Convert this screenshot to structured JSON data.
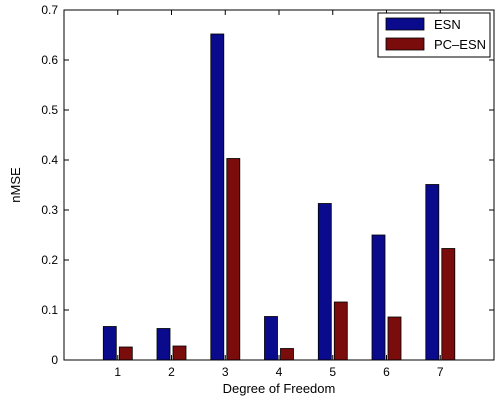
{
  "chart_data": {
    "type": "bar",
    "xlabel": "Degree of Freedom",
    "ylabel": "nMSE",
    "categories": [
      "1",
      "2",
      "3",
      "4",
      "5",
      "6",
      "7"
    ],
    "ylim": [
      0,
      0.7
    ],
    "yticks": [
      "0",
      "0.1",
      "0.2",
      "0.3",
      "0.4",
      "0.5",
      "0.6",
      "0.7"
    ],
    "legend_position": "top-right",
    "grid": false,
    "series": [
      {
        "name": "ESN",
        "color": "#0a0a8c",
        "values": [
          0.067,
          0.063,
          0.652,
          0.087,
          0.313,
          0.25,
          0.351
        ]
      },
      {
        "name": "PC–ESN",
        "color": "#7a0c0c",
        "values": [
          0.026,
          0.028,
          0.403,
          0.023,
          0.116,
          0.086,
          0.223
        ]
      }
    ]
  }
}
